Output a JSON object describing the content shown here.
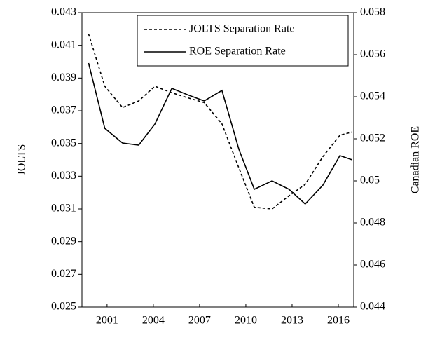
{
  "chart_data": {
    "type": "line",
    "y_label": "JOLTS",
    "y2_label": "Canadian ROE",
    "x": [
      1999.8,
      2000.85,
      2002.0,
      2003.05,
      2004.1,
      2005.2,
      2006.2,
      2007.3,
      2008.45,
      2009.55,
      2010.55,
      2011.7,
      2012.8,
      2013.85,
      2015.0,
      2016.1,
      2016.9
    ],
    "xlim": [
      1999.37,
      2017.0
    ],
    "xticks": [
      2001,
      2004,
      2007,
      2010,
      2013,
      2016
    ],
    "ylim": [
      0.025,
      0.043
    ],
    "yticks": [
      0.025,
      0.027,
      0.029,
      0.031,
      0.033,
      0.035,
      0.037,
      0.039,
      0.041,
      0.043
    ],
    "y2lim": [
      0.044,
      0.058
    ],
    "y2ticks": [
      0.044,
      0.046,
      0.048,
      0.05,
      0.052,
      0.054,
      0.056,
      0.058
    ],
    "legend": "upper right",
    "series": [
      {
        "name": "JOLTS Separation Rate",
        "color": "#000000",
        "dash": true,
        "values": [
          0.0417,
          0.0385,
          0.0372,
          0.0376,
          0.0385,
          0.0381,
          0.0378,
          0.0375,
          0.0362,
          0.0335,
          0.0311,
          0.031,
          0.0318,
          0.0325,
          0.0342,
          0.0355,
          0.0357
        ]
      },
      {
        "name": "ROE Separation Rate",
        "color": "#000000",
        "dash": false,
        "axis": "y2",
        "values": [
          0.0556,
          0.0525,
          0.0518,
          0.0517,
          0.0527,
          0.0544,
          0.0541,
          0.0538,
          0.0543,
          0.0515,
          0.0496,
          0.05,
          0.0496,
          0.0489,
          0.0498,
          0.0512,
          0.051
        ]
      }
    ]
  }
}
